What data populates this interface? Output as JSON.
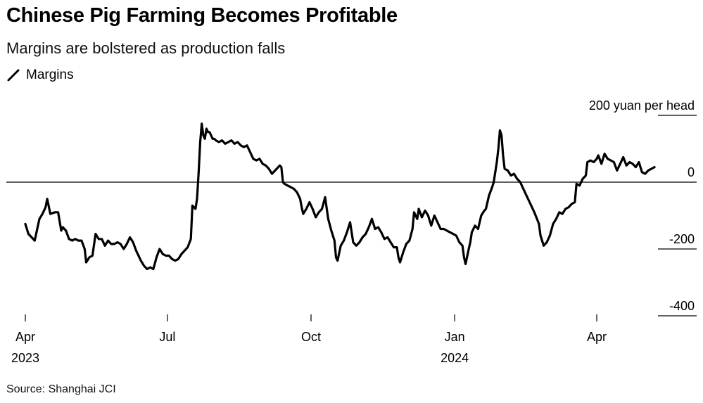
{
  "colors": {
    "line": "#000000",
    "zero_line": "#000000",
    "tick": "#000000"
  },
  "chart_data": {
    "type": "line",
    "title": "Chinese Pig Farming Becomes Profitable",
    "subtitle": "Margins are bolstered as production falls",
    "legend": [
      "Margins"
    ],
    "ylabel_unit": "yuan per head",
    "source": "Source: Shanghai JCI",
    "ylim": [
      -400,
      200
    ],
    "y_ticks": [
      {
        "value": 200,
        "label": "200 yuan per head"
      },
      {
        "value": 0,
        "label": "0"
      },
      {
        "value": -200,
        "label": "-200"
      },
      {
        "value": -400,
        "label": "-400"
      }
    ],
    "x_ticks": [
      {
        "day": 0,
        "label": "Apr",
        "year": "2023"
      },
      {
        "day": 91,
        "label": "Jul",
        "year": ""
      },
      {
        "day": 183,
        "label": "Oct",
        "year": ""
      },
      {
        "day": 275,
        "label": "Jan",
        "year": "2024"
      },
      {
        "day": 366,
        "label": "Apr",
        "year": ""
      }
    ],
    "xlim": [
      0,
      409
    ],
    "series": [
      {
        "name": "Margins",
        "x_unit": "days since Apr 1 2023",
        "points": [
          [
            0,
            -125
          ],
          [
            2,
            -155
          ],
          [
            4,
            -165
          ],
          [
            6,
            -175
          ],
          [
            9,
            -110
          ],
          [
            11,
            -95
          ],
          [
            13,
            -75
          ],
          [
            14,
            -50
          ],
          [
            16,
            -95
          ],
          [
            19,
            -90
          ],
          [
            21,
            -90
          ],
          [
            23,
            -145
          ],
          [
            24,
            -135
          ],
          [
            26,
            -145
          ],
          [
            28,
            -170
          ],
          [
            30,
            -175
          ],
          [
            32,
            -170
          ],
          [
            34,
            -175
          ],
          [
            36,
            -175
          ],
          [
            38,
            -200
          ],
          [
            39,
            -240
          ],
          [
            41,
            -225
          ],
          [
            43,
            -220
          ],
          [
            45,
            -155
          ],
          [
            47,
            -170
          ],
          [
            49,
            -170
          ],
          [
            51,
            -190
          ],
          [
            53,
            -175
          ],
          [
            55,
            -185
          ],
          [
            57,
            -185
          ],
          [
            59,
            -180
          ],
          [
            61,
            -185
          ],
          [
            63,
            -200
          ],
          [
            65,
            -185
          ],
          [
            67,
            -165
          ],
          [
            69,
            -180
          ],
          [
            71,
            -205
          ],
          [
            74,
            -235
          ],
          [
            76,
            -250
          ],
          [
            78,
            -260
          ],
          [
            80,
            -255
          ],
          [
            82,
            -260
          ],
          [
            84,
            -225
          ],
          [
            86,
            -200
          ],
          [
            88,
            -215
          ],
          [
            90,
            -220
          ],
          [
            92,
            -220
          ],
          [
            94,
            -230
          ],
          [
            96,
            -235
          ],
          [
            98,
            -230
          ],
          [
            100,
            -215
          ],
          [
            102,
            -205
          ],
          [
            104,
            -195
          ],
          [
            106,
            -170
          ],
          [
            107,
            -70
          ],
          [
            109,
            -80
          ],
          [
            110,
            -50
          ],
          [
            111,
            30
          ],
          [
            112,
            120
          ],
          [
            113,
            175
          ],
          [
            114,
            140
          ],
          [
            115,
            130
          ],
          [
            116,
            160
          ],
          [
            117,
            150
          ],
          [
            118,
            150
          ],
          [
            119,
            140
          ],
          [
            120,
            130
          ],
          [
            121,
            130
          ],
          [
            122,
            125
          ],
          [
            124,
            120
          ],
          [
            126,
            125
          ],
          [
            128,
            115
          ],
          [
            130,
            120
          ],
          [
            132,
            125
          ],
          [
            134,
            115
          ],
          [
            136,
            120
          ],
          [
            138,
            110
          ],
          [
            140,
            105
          ],
          [
            142,
            110
          ],
          [
            144,
            90
          ],
          [
            146,
            70
          ],
          [
            148,
            65
          ],
          [
            150,
            70
          ],
          [
            152,
            55
          ],
          [
            154,
            50
          ],
          [
            156,
            40
          ],
          [
            158,
            25
          ],
          [
            161,
            40
          ],
          [
            163,
            50
          ],
          [
            164,
            45
          ],
          [
            165,
            0
          ],
          [
            166,
            -5
          ],
          [
            168,
            -10
          ],
          [
            170,
            -15
          ],
          [
            172,
            -20
          ],
          [
            174,
            -30
          ],
          [
            176,
            -50
          ],
          [
            177,
            -75
          ],
          [
            178,
            -95
          ],
          [
            180,
            -80
          ],
          [
            182,
            -60
          ],
          [
            184,
            -80
          ],
          [
            186,
            -105
          ],
          [
            188,
            -90
          ],
          [
            190,
            -80
          ],
          [
            192,
            -45
          ],
          [
            194,
            -110
          ],
          [
            196,
            -145
          ],
          [
            198,
            -175
          ],
          [
            199,
            -225
          ],
          [
            200,
            -235
          ],
          [
            202,
            -190
          ],
          [
            204,
            -175
          ],
          [
            206,
            -150
          ],
          [
            208,
            -120
          ],
          [
            210,
            -180
          ],
          [
            212,
            -190
          ],
          [
            214,
            -180
          ],
          [
            216,
            -165
          ],
          [
            218,
            -155
          ],
          [
            220,
            -135
          ],
          [
            222,
            -110
          ],
          [
            224,
            -140
          ],
          [
            226,
            -135
          ],
          [
            228,
            -150
          ],
          [
            230,
            -170
          ],
          [
            232,
            -165
          ],
          [
            234,
            -180
          ],
          [
            236,
            -195
          ],
          [
            238,
            -195
          ],
          [
            239,
            -225
          ],
          [
            240,
            -240
          ],
          [
            242,
            -210
          ],
          [
            244,
            -185
          ],
          [
            246,
            -175
          ],
          [
            248,
            -140
          ],
          [
            249,
            -90
          ],
          [
            251,
            -110
          ],
          [
            252,
            -80
          ],
          [
            254,
            -105
          ],
          [
            256,
            -85
          ],
          [
            258,
            -100
          ],
          [
            260,
            -130
          ],
          [
            262,
            -100
          ],
          [
            264,
            -120
          ],
          [
            266,
            -140
          ],
          [
            268,
            -140
          ],
          [
            270,
            -145
          ],
          [
            272,
            -150
          ],
          [
            274,
            -155
          ],
          [
            276,
            -160
          ],
          [
            278,
            -180
          ],
          [
            280,
            -190
          ],
          [
            281,
            -225
          ],
          [
            282,
            -245
          ],
          [
            284,
            -200
          ],
          [
            285,
            -180
          ],
          [
            286,
            -150
          ],
          [
            288,
            -130
          ],
          [
            290,
            -140
          ],
          [
            292,
            -100
          ],
          [
            294,
            -85
          ],
          [
            295,
            -80
          ],
          [
            297,
            -40
          ],
          [
            299,
            -15
          ],
          [
            300,
            0
          ],
          [
            302,
            60
          ],
          [
            303,
            100
          ],
          [
            304,
            155
          ],
          [
            305,
            140
          ],
          [
            306,
            80
          ],
          [
            307,
            40
          ],
          [
            309,
            35
          ],
          [
            311,
            20
          ],
          [
            313,
            25
          ],
          [
            315,
            10
          ],
          [
            317,
            0
          ],
          [
            320,
            -30
          ],
          [
            323,
            -60
          ],
          [
            326,
            -90
          ],
          [
            329,
            -125
          ],
          [
            330,
            -160
          ],
          [
            332,
            -190
          ],
          [
            334,
            -180
          ],
          [
            336,
            -160
          ],
          [
            338,
            -125
          ],
          [
            340,
            -110
          ],
          [
            342,
            -90
          ],
          [
            344,
            -95
          ],
          [
            346,
            -80
          ],
          [
            348,
            -75
          ],
          [
            350,
            -65
          ],
          [
            352,
            -60
          ],
          [
            353,
            -5
          ],
          [
            355,
            -10
          ],
          [
            357,
            10
          ],
          [
            359,
            20
          ],
          [
            360,
            60
          ],
          [
            362,
            65
          ],
          [
            364,
            60
          ],
          [
            366,
            70
          ],
          [
            367,
            80
          ],
          [
            369,
            55
          ],
          [
            371,
            85
          ],
          [
            373,
            70
          ],
          [
            375,
            65
          ],
          [
            377,
            60
          ],
          [
            379,
            35
          ],
          [
            381,
            55
          ],
          [
            383,
            75
          ],
          [
            385,
            50
          ],
          [
            387,
            60
          ],
          [
            389,
            55
          ],
          [
            391,
            45
          ],
          [
            393,
            60
          ],
          [
            395,
            30
          ],
          [
            397,
            25
          ],
          [
            399,
            35
          ],
          [
            401,
            40
          ],
          [
            403,
            45
          ]
        ]
      }
    ]
  }
}
